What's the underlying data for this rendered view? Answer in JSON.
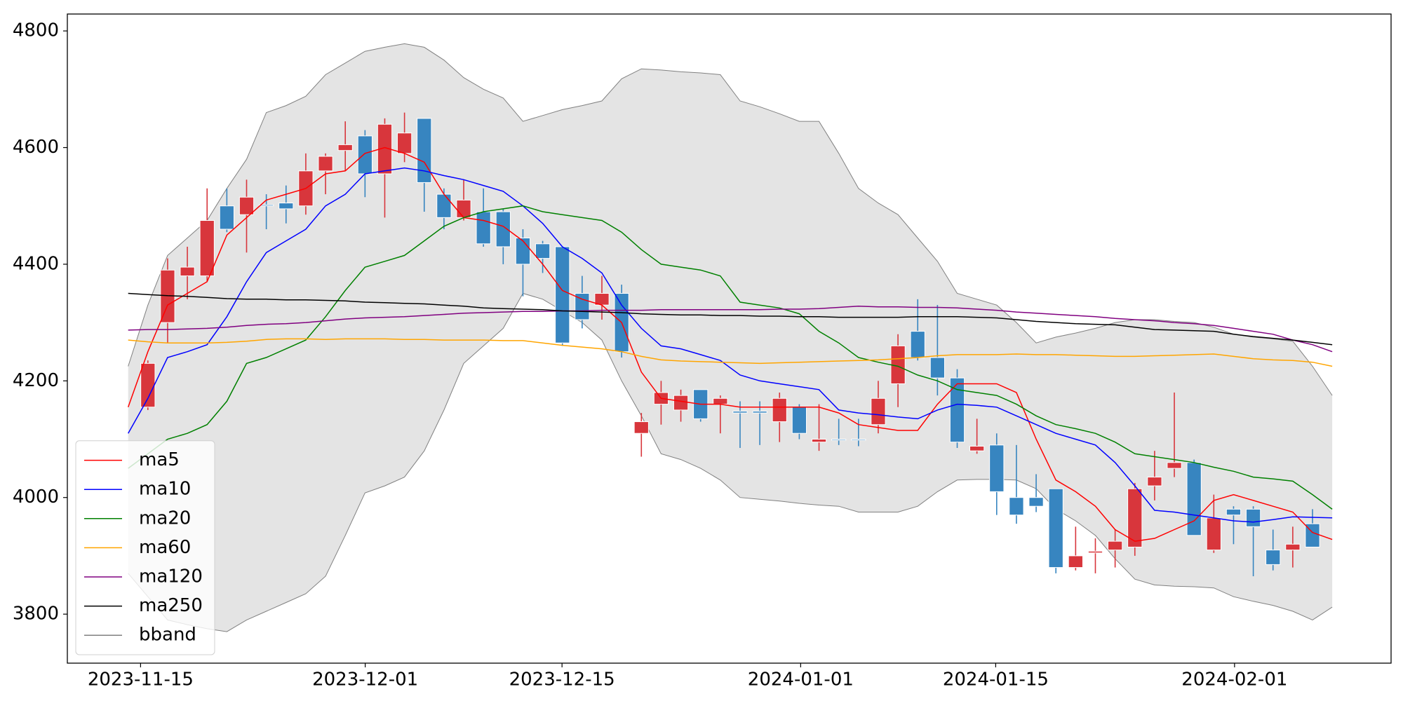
{
  "chart_data": {
    "type": "candlestick",
    "categories": [
      null,
      null,
      null,
      null,
      null,
      null,
      null,
      null,
      null,
      null,
      null,
      null,
      null,
      null,
      null,
      null,
      null,
      null,
      null,
      null,
      null,
      null,
      null,
      null,
      null,
      null,
      null,
      null,
      null,
      null,
      null,
      null,
      null,
      null,
      null,
      null,
      null,
      null,
      null,
      null,
      null,
      null,
      null,
      null,
      null,
      null,
      null,
      null,
      null,
      null,
      null,
      null,
      null,
      null,
      null,
      null,
      null,
      null,
      null,
      null,
      null,
      null
    ],
    "open": [
      null,
      4155,
      4300,
      4380,
      4380,
      4500,
      4485,
      4502,
      4505,
      4500,
      4560,
      4595,
      4620,
      4555,
      4590,
      4650,
      4520,
      4480,
      4490,
      4490,
      4445,
      4435,
      4430,
      4350,
      4330,
      4350,
      4110,
      4160,
      4150,
      4185,
      4160,
      4148,
      4148,
      4130,
      4155,
      4095,
      4100,
      4100,
      4125,
      4195,
      4285,
      4240,
      4205,
      4080,
      4090,
      4000,
      4000,
      4015,
      3880,
      3905,
      3910,
      3915,
      4020,
      4050,
      4060,
      3910,
      3980,
      3980,
      3910,
      3910,
      3955,
      null
    ],
    "high": [
      null,
      4235,
      4410,
      4430,
      4530,
      4530,
      4545,
      4520,
      4535,
      4590,
      4590,
      4645,
      4630,
      4650,
      4660,
      4650,
      4530,
      4545,
      4530,
      4495,
      4460,
      4440,
      4430,
      4380,
      4380,
      4365,
      4145,
      4200,
      4185,
      4185,
      4175,
      4165,
      4165,
      4180,
      4160,
      4160,
      4135,
      4135,
      4200,
      4280,
      4340,
      4330,
      4220,
      4135,
      4110,
      4090,
      4040,
      4015,
      3950,
      3930,
      3945,
      4025,
      4080,
      4180,
      4065,
      4005,
      3985,
      3985,
      3945,
      3950,
      3980,
      null
    ],
    "low": [
      null,
      4150,
      4265,
      4340,
      4370,
      4455,
      4420,
      4460,
      4470,
      4485,
      4520,
      4560,
      4515,
      4480,
      4575,
      4490,
      4460,
      4475,
      4430,
      4400,
      4345,
      4385,
      4260,
      4290,
      4305,
      4240,
      4070,
      4125,
      4130,
      4130,
      4110,
      4085,
      4090,
      4095,
      4100,
      4080,
      4090,
      4088,
      4110,
      4155,
      4235,
      4175,
      4085,
      4075,
      3970,
      3955,
      3975,
      3870,
      3875,
      3870,
      3880,
      3900,
      3995,
      4035,
      3935,
      3905,
      3920,
      3865,
      3875,
      3880,
      3915,
      null
    ],
    "close": [
      null,
      4230,
      4390,
      4395,
      4475,
      4460,
      4515,
      4500,
      4495,
      4560,
      4585,
      4605,
      4555,
      4640,
      4625,
      4540,
      4480,
      4510,
      4435,
      4430,
      4400,
      4410,
      4265,
      4305,
      4350,
      4250,
      4130,
      4180,
      4175,
      4135,
      4170,
      4145,
      4145,
      4170,
      4110,
      4100,
      4099,
      4099,
      4170,
      4260,
      4240,
      4205,
      4095,
      4088,
      4010,
      3970,
      3985,
      3880,
      3900,
      3908,
      3925,
      4015,
      4035,
      4060,
      3935,
      3965,
      3970,
      3950,
      3885,
      3920,
      3915,
      null
    ],
    "up_color": "#d8363c",
    "down_color": "#3785c0",
    "series": [
      {
        "name": "ma5",
        "color": "#ff0000",
        "values": [
          4155,
          4250,
          4330,
          4350,
          4370,
          4450,
          4480,
          4510,
          4520,
          4530,
          4555,
          4560,
          4590,
          4600,
          4590,
          4575,
          4520,
          4480,
          4475,
          4465,
          4440,
          4400,
          4355,
          4340,
          4330,
          4300,
          4215,
          4170,
          4165,
          4160,
          4160,
          4155,
          4155,
          4155,
          4155,
          4155,
          4145,
          4125,
          4120,
          4115,
          4115,
          4160,
          4195,
          4195,
          4195,
          4180,
          4100,
          4030,
          4010,
          3985,
          3945,
          3925,
          3930,
          3945,
          3960,
          3995,
          4005,
          3995,
          3985,
          3975,
          3940,
          3928
        ]
      },
      {
        "name": "ma10",
        "color": "#0000ff",
        "values": [
          4110,
          4170,
          4240,
          4250,
          4262,
          4310,
          4370,
          4420,
          4440,
          4460,
          4500,
          4520,
          4555,
          4560,
          4565,
          4560,
          4552,
          4545,
          4535,
          4525,
          4500,
          4470,
          4430,
          4410,
          4385,
          4330,
          4290,
          4260,
          4255,
          4245,
          4235,
          4210,
          4200,
          4195,
          4190,
          4185,
          4150,
          4145,
          4142,
          4138,
          4135,
          4150,
          4160,
          4158,
          4155,
          4140,
          4125,
          4110,
          4100,
          4090,
          4060,
          4020,
          3978,
          3975,
          3970,
          3965,
          3960,
          3958,
          3962,
          3967,
          3966,
          3965
        ]
      },
      {
        "name": "ma20",
        "color": "#008000",
        "values": [
          4050,
          4075,
          4100,
          4110,
          4125,
          4165,
          4230,
          4240,
          4255,
          4270,
          4310,
          4355,
          4395,
          4405,
          4415,
          4440,
          4465,
          4480,
          4490,
          4495,
          4500,
          4490,
          4485,
          4480,
          4475,
          4455,
          4425,
          4400,
          4395,
          4390,
          4380,
          4335,
          4330,
          4325,
          4315,
          4285,
          4265,
          4240,
          4232,
          4225,
          4210,
          4200,
          4185,
          4180,
          4175,
          4160,
          4140,
          4125,
          4118,
          4110,
          4095,
          4075,
          4070,
          4065,
          4060,
          4052,
          4045,
          4035,
          4032,
          4028,
          4005,
          3980
        ]
      },
      {
        "name": "ma60",
        "color": "#ffa500",
        "values": [
          4270,
          4267,
          4265,
          4265,
          4265,
          4266,
          4268,
          4271,
          4272,
          4272,
          4271,
          4272,
          4272,
          4272,
          4271,
          4271,
          4270,
          4270,
          4270,
          4269,
          4269,
          4265,
          4261,
          4258,
          4255,
          4250,
          4242,
          4236,
          4234,
          4233,
          4232,
          4231,
          4230,
          4231,
          4232,
          4233,
          4234,
          4235,
          4236,
          4238,
          4240,
          4243,
          4245,
          4245,
          4245,
          4246,
          4245,
          4245,
          4244,
          4243,
          4242,
          4242,
          4243,
          4244,
          4245,
          4246,
          4242,
          4238,
          4236,
          4235,
          4232,
          4225
        ]
      },
      {
        "name": "ma120",
        "color": "#800080",
        "values": [
          4287,
          4288,
          4288,
          4289,
          4290,
          4292,
          4295,
          4297,
          4298,
          4300,
          4303,
          4306,
          4308,
          4309,
          4310,
          4312,
          4314,
          4316,
          4317,
          4318,
          4319,
          4319,
          4320,
          4320,
          4321,
          4321,
          4321,
          4322,
          4322,
          4322,
          4322,
          4322,
          4322,
          4323,
          4323,
          4324,
          4326,
          4328,
          4327,
          4327,
          4326,
          4326,
          4325,
          4323,
          4321,
          4318,
          4316,
          4314,
          4312,
          4310,
          4307,
          4305,
          4303,
          4300,
          4298,
          4295,
          4290,
          4285,
          4280,
          4270,
          4262,
          4250
        ]
      },
      {
        "name": "ma250",
        "color": "#000000",
        "values": [
          4350,
          4348,
          4346,
          4345,
          4343,
          4341,
          4340,
          4340,
          4339,
          4339,
          4338,
          4337,
          4335,
          4334,
          4333,
          4332,
          4330,
          4328,
          4325,
          4324,
          4323,
          4322,
          4320,
          4319,
          4318,
          4317,
          4315,
          4314,
          4313,
          4313,
          4312,
          4312,
          4311,
          4311,
          4310,
          4310,
          4309,
          4309,
          4309,
          4309,
          4310,
          4310,
          4310,
          4309,
          4308,
          4305,
          4302,
          4300,
          4298,
          4297,
          4296,
          4292,
          4288,
          4287,
          4286,
          4285,
          4280,
          4276,
          4273,
          4270,
          4266,
          4262
        ]
      }
    ],
    "bband": {
      "name": "bband",
      "color": "#808080",
      "fill": "#e4e4e4",
      "upper": [
        4225,
        4330,
        4415,
        4445,
        4475,
        4530,
        4580,
        4660,
        4672,
        4688,
        4725,
        4745,
        4765,
        4772,
        4778,
        4772,
        4750,
        4720,
        4700,
        4685,
        4645,
        4655,
        4665,
        4672,
        4680,
        4718,
        4735,
        4733,
        4730,
        4728,
        4725,
        4680,
        4670,
        4658,
        4645,
        4645,
        4590,
        4530,
        4505,
        4485,
        4445,
        4405,
        4350,
        4340,
        4330,
        4300,
        4265,
        4275,
        4282,
        4290,
        4300,
        4305,
        4305,
        4302,
        4300,
        4292,
        4280,
        4275,
        4272,
        4268,
        4225,
        4175
      ],
      "lower": [
        3870,
        3830,
        3790,
        3782,
        3775,
        3770,
        3790,
        3805,
        3820,
        3835,
        3865,
        3935,
        4008,
        4020,
        4035,
        4080,
        4150,
        4230,
        4260,
        4290,
        4350,
        4340,
        4320,
        4300,
        4270,
        4200,
        4140,
        4075,
        4065,
        4050,
        4030,
        4000,
        3997,
        3994,
        3990,
        3987,
        3985,
        3975,
        3975,
        3975,
        3985,
        4010,
        4030,
        4031,
        4031,
        4030,
        4015,
        3980,
        3960,
        3935,
        3895,
        3860,
        3850,
        3848,
        3847,
        3845,
        3830,
        3822,
        3815,
        3805,
        3790,
        3812
      ]
    },
    "xlim": [
      -3.08,
      63.98
    ],
    "xticks": [
      {
        "value": 0.63,
        "label": "2023-11-15"
      },
      {
        "value": 12.01,
        "label": "2023-12-01"
      },
      {
        "value": 21.98,
        "label": "2023-12-15"
      },
      {
        "value": 34.07,
        "label": "2024-01-01"
      },
      {
        "value": 43.95,
        "label": "2024-01-15"
      },
      {
        "value": 56.05,
        "label": "2024-02-01"
      }
    ],
    "ylim": [
      3716,
      4829
    ],
    "yticks": [
      3800,
      4000,
      4200,
      4400,
      4600,
      4800
    ],
    "legend": "lower left"
  }
}
